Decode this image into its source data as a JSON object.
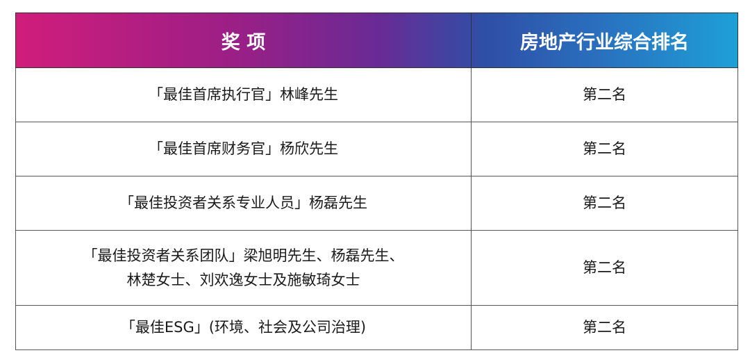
{
  "colors": {
    "header_gradient": [
      "#d01d7b",
      "#9b1f86",
      "#6a2a95",
      "#2e4fa6",
      "#1ea0d8"
    ],
    "header_text": "#ffffff",
    "border": "#555555"
  },
  "table": {
    "headers": [
      "奖 项",
      "房地产行业综合排名"
    ],
    "rows": [
      {
        "award": "「最佳首席执行官」林峰先生",
        "rank": "第二名"
      },
      {
        "award": "「最佳首席财务官」杨欣先生",
        "rank": "第二名"
      },
      {
        "award": "「最佳投资者关系专业人员」杨磊先生",
        "rank": "第二名"
      },
      {
        "award_lines": [
          "「最佳投资者关系团队」梁旭明先生、杨磊先生、",
          "林楚女士、刘欢逸女士及施敏琦女士"
        ],
        "rank": "第二名"
      },
      {
        "award": "「最佳ESG」(环境、社会及公司治理)",
        "rank": "第二名"
      }
    ]
  }
}
